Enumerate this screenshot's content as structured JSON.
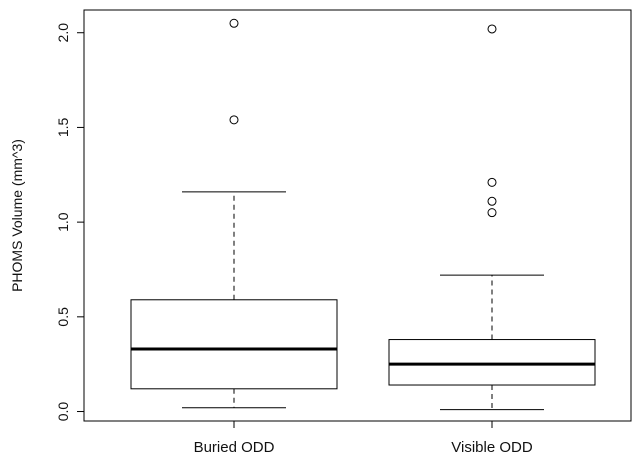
{
  "chart_data": {
    "type": "boxplot",
    "title": "",
    "xlabel": "",
    "ylabel": "PHOMS Volume (mm^3)",
    "ylim": [
      -0.05,
      2.12
    ],
    "yticks": [
      0.0,
      0.5,
      1.0,
      1.5,
      2.0
    ],
    "ytick_labels": [
      "0.0",
      "0.5",
      "1.0",
      "1.5",
      "2.0"
    ],
    "grid": false,
    "categories": [
      "Buried ODD",
      "Visible ODD"
    ],
    "boxes": [
      {
        "category": "Buried ODD",
        "whisker_low": 0.02,
        "q1": 0.12,
        "median": 0.33,
        "q3": 0.59,
        "whisker_high": 1.16,
        "outliers": [
          1.54,
          2.05
        ]
      },
      {
        "category": "Visible ODD",
        "whisker_low": 0.01,
        "q1": 0.14,
        "median": 0.25,
        "q3": 0.38,
        "whisker_high": 0.72,
        "outliers": [
          1.05,
          1.11,
          1.21,
          2.02
        ]
      }
    ]
  }
}
